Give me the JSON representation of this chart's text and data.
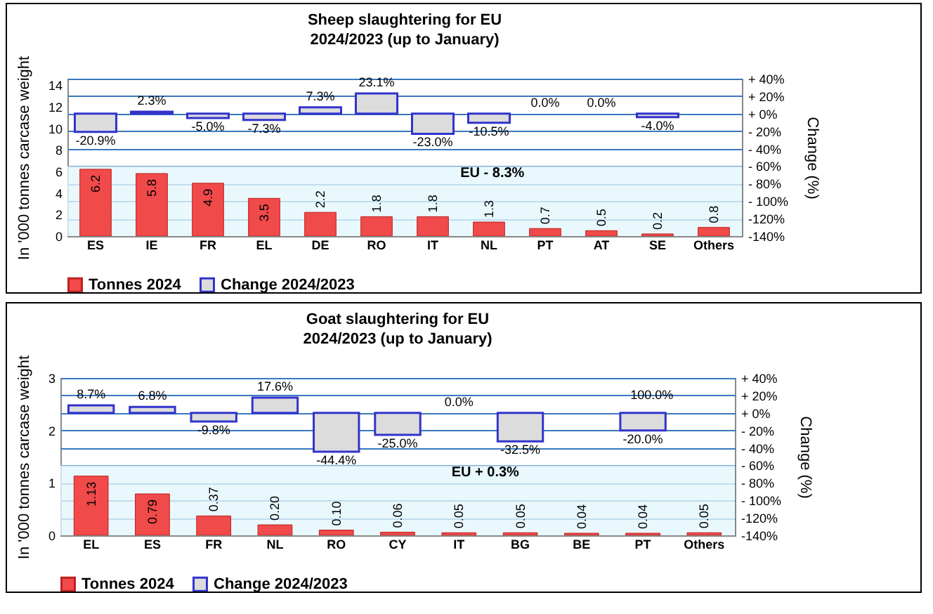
{
  "chart_data": [
    {
      "type": "bar",
      "title": "Sheep slaughtering for EU",
      "subtitle": "2024/2023 (up to January)",
      "ylabel": "In '000 tonnes carcase weight",
      "y2label": "Change (%)",
      "categories": [
        "ES",
        "IE",
        "FR",
        "EL",
        "DE",
        "RO",
        "IT",
        "NL",
        "PT",
        "AT",
        "SE",
        "Others"
      ],
      "series": [
        {
          "name": "Tonnes 2024",
          "color": "#f04a4a",
          "values": [
            6.2,
            5.8,
            4.9,
            3.5,
            2.2,
            1.8,
            1.8,
            1.3,
            0.7,
            0.5,
            0.2,
            0.8
          ],
          "value_labels": [
            "6.2",
            "5.8",
            "4.9",
            "3.5",
            "2.2",
            "1.8",
            "1.8",
            "1.3",
            "0.7",
            "0.5",
            "0.2",
            "0.8"
          ]
        },
        {
          "name": "Change 2024/2023",
          "color": "#dcdcdc",
          "axis": "y2",
          "values": [
            -20.9,
            2.3,
            -5.0,
            -7.3,
            7.3,
            23.1,
            -23.0,
            -10.5,
            0,
            0,
            -4.0,
            null
          ],
          "value_labels": [
            "-20.9%",
            "2.3%",
            "-5.0%",
            "-7.3%",
            "7.3%",
            "23.1%",
            "-23.0%",
            "-10.5%",
            "0.0%",
            "0.0%",
            "-4.0%",
            null
          ]
        }
      ],
      "ylim": [
        0,
        14.6
      ],
      "yticks": [
        0,
        2,
        4,
        6,
        8,
        10,
        12,
        14
      ],
      "y2lim": [
        -140,
        40
      ],
      "y2ticks": [
        {
          "value": 40,
          "label": "+ 40%"
        },
        {
          "value": 20,
          "label": "+ 20%"
        },
        {
          "value": 0,
          "label": "+ 0%"
        },
        {
          "value": -20,
          "label": "- 20%"
        },
        {
          "value": -40,
          "label": "- 40%"
        },
        {
          "value": -60,
          "label": "- 60%"
        },
        {
          "value": -80,
          "label": "- 80%"
        },
        {
          "value": -100,
          "label": "- 100%"
        },
        {
          "value": -120,
          "label": "-120%"
        },
        {
          "value": -140,
          "label": "-140%"
        }
      ],
      "grid": "y",
      "legend": "bottom",
      "bands": [
        {
          "axis": "y2",
          "from": -140,
          "to": -60,
          "color": "#e3f6fb"
        }
      ],
      "annotations": [
        "EU  - 8.3%"
      ]
    },
    {
      "type": "bar",
      "title": "Goat slaughtering for EU",
      "subtitle": "2024/2023 (up to January)",
      "ylabel": "In '000 tonnes carcase weight",
      "y2label": "Change (%)",
      "categories": [
        "EL",
        "ES",
        "FR",
        "NL",
        "RO",
        "CY",
        "IT",
        "BG",
        "BE",
        "PT",
        "Others"
      ],
      "series": [
        {
          "name": "Tonnes 2024",
          "color": "#f04a4a",
          "values": [
            1.13,
            0.79,
            0.37,
            0.2,
            0.1,
            0.06,
            0.05,
            0.05,
            0.04,
            0.04,
            0.05
          ],
          "value_labels": [
            "1.13",
            "0.79",
            "0.37",
            "0.20",
            "0.10",
            "0.06",
            "0.05",
            "0.05",
            "0.04",
            "0.04",
            "0.05"
          ]
        },
        {
          "name": "Change 2024/2023",
          "color": "#dcdcdc",
          "axis": "y2",
          "values": [
            8.7,
            6.8,
            -9.8,
            17.6,
            -44.4,
            -25.0,
            0,
            -32.5,
            null,
            -20.0,
            null
          ],
          "value_labels": [
            "8.7%",
            "6.8%",
            "-9.8%",
            "17.6%",
            "-44.4%",
            "-25.0%",
            "0.0%",
            "-32.5%",
            null,
            "-20.0%",
            null
          ]
        }
      ],
      "ylim": [
        0,
        3
      ],
      "yticks": [
        0,
        1,
        2,
        3
      ],
      "y2lim": [
        -140,
        40
      ],
      "y2ticks": [
        {
          "value": 40,
          "label": "+ 40%"
        },
        {
          "value": 20,
          "label": "+ 20%"
        },
        {
          "value": 0,
          "label": "+ 0%"
        },
        {
          "value": -20,
          "label": "- 20%"
        },
        {
          "value": -40,
          "label": "- 40%"
        },
        {
          "value": -60,
          "label": "- 60%"
        },
        {
          "value": -80,
          "label": "- 80%"
        },
        {
          "value": -100,
          "label": "- 100%"
        },
        {
          "value": -120,
          "label": "-120%"
        },
        {
          "value": -140,
          "label": "-140%"
        }
      ],
      "grid": "y",
      "legend": "bottom",
      "bands": [
        {
          "axis": "y2",
          "from": -140,
          "to": -60,
          "color": "#e3f6fb"
        }
      ],
      "annotations": [
        "EU  + 0.3%",
        "100.0%"
      ]
    }
  ]
}
